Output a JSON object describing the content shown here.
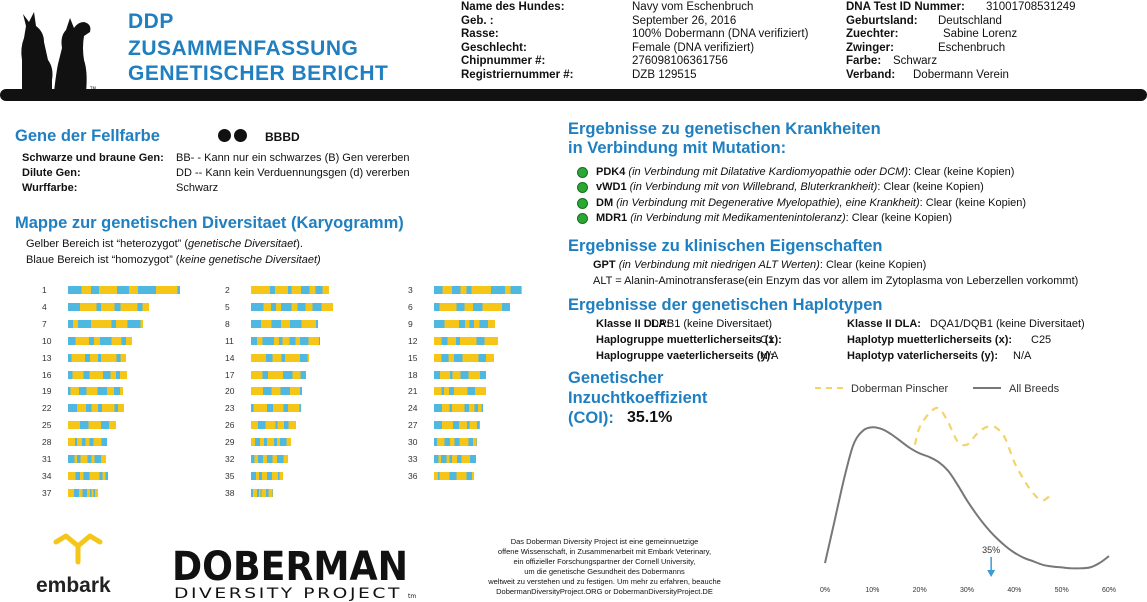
{
  "header": {
    "title_lines": [
      "DDP",
      "ZUSAMMENFASSUNG",
      "GENETISCHER BERICHT"
    ],
    "left_fields": [
      {
        "label": "Name des Hundes:",
        "value": "Navy vom Eschenbruch"
      },
      {
        "label": "Geb. :",
        "value": "September 26, 2016"
      },
      {
        "label": "Rasse:",
        "value": "100% Dobermann (DNA verifiziert)"
      },
      {
        "label": "Geschlecht:",
        "value": "Female (DNA verifiziert)"
      },
      {
        "label": "Chipnummer #:",
        "value": "276098106361756"
      },
      {
        "label": "Registriernummer #:",
        "value": "DZB 129515"
      }
    ],
    "right_fields": [
      {
        "label": "DNA Test ID Nummer:",
        "value": "31001708531249"
      },
      {
        "label": "Geburtsland:",
        "value": "Deutschland"
      },
      {
        "label": "Zuechter:",
        "value": "Sabine Lorenz"
      },
      {
        "label": "Zwinger:",
        "value": "Eschenbruch"
      },
      {
        "label": "Farbe:",
        "value": "Schwarz"
      },
      {
        "label": "Verband:",
        "value": "Dobermann Verein"
      }
    ]
  },
  "coat": {
    "heading": "Gene der Fellfarbe",
    "genotype": "BBBD",
    "rows": [
      {
        "label": "Schwarze und braune Gen:",
        "value": "BB- - Kann nur ein schwarzes (B) Gen vererben"
      },
      {
        "label": "Dilute Gen:",
        "value": "DD -- Kann kein Verduennungsgen (d) vererben"
      },
      {
        "label": "Wurffarbe:",
        "value": "Schwarz"
      }
    ]
  },
  "karyogram": {
    "heading": "Mappe zur genetischen Diversitaet (Karyogramm)",
    "line1_prefix": "Gelber Bereich ist “heterozygot” (",
    "line1_italic": "genetische Diversitaet",
    "line1_suffix": ").",
    "line2_prefix": "Blaue  Bereich ist “homozygot” (",
    "line2_italic": "keine genetische Diversitaet)",
    "colors": {
      "heterozygous": "#f5c518",
      "homozygous": "#4fb8e0"
    },
    "columns": [
      [
        "1",
        "4",
        "7",
        "10",
        "13",
        "16",
        "19",
        "22",
        "25",
        "28",
        "31",
        "34",
        "37"
      ],
      [
        "2",
        "5",
        "8",
        "11",
        "14",
        "17",
        "20",
        "23",
        "26",
        "29",
        "32",
        "35",
        "38"
      ],
      [
        "3",
        "6",
        "9",
        "12",
        "15",
        "18",
        "21",
        "24",
        "27",
        "30",
        "33",
        "36"
      ]
    ]
  },
  "disease": {
    "heading_line1": "Ergebnisse zu genetischen Krankheiten",
    "heading_line2": "in Verbindung mit Mutation:",
    "items": [
      {
        "gene": "PDK4",
        "desc": "(in Verbindung mit Dilatative Kardiomyopathie oder DCM)",
        "result": ": Clear (keine Kopien)"
      },
      {
        "gene": "vWD1",
        "desc": "(in Verbindung mit von Willebrand, Bluterkrankheit)",
        "result": ":  Clear (keine Kopien)"
      },
      {
        "gene": "DM",
        "desc": "(in Verbindung mit Degenerative Myelopathie), eine Krankheit)",
        "result": ":  Clear (keine Kopien)"
      },
      {
        "gene": "MDR1",
        "desc": "(in Verbindung mit Medikamentenintoleranz)",
        "result": ": Clear (keine Kopien)"
      }
    ]
  },
  "clinical": {
    "heading": "Ergebnisse zu klinischen Eigenschaften",
    "gpt_label": "GPT",
    "gpt_desc": "(in Verbindung mit niedrigen ALT Werten)",
    "gpt_result": ":  Clear (keine Kopien)",
    "alt_text": "ALT = Alanin-Aminotransferase(ein Enzym das vor allem im Zytoplasma von Leberzellen vorkommt)"
  },
  "haplotypes": {
    "heading": "Ergebnisse der genetischen Haplotypen",
    "left": [
      {
        "label": "Klasse II DLA:",
        "value": "DRB1  (keine Diversitaet)"
      },
      {
        "label": "Haplogruppe muetterlicherseits (x):",
        "value": "C1"
      },
      {
        "label": "Haplogruppe vaeterlicherseits (y):",
        "value": "N/A"
      }
    ],
    "right": [
      {
        "label": "Klasse II DLA:",
        "value": "DQA1/DQB1 (keine Diversitaet)"
      },
      {
        "label": "Haplotyp muetterlicherseits (x):",
        "value": "C25"
      },
      {
        "label": "Haplotyp vaterlicherseits (y):",
        "value": "N/A"
      }
    ]
  },
  "coi": {
    "heading_lines": [
      "Genetischer",
      "Inzuchtkoeffizient"
    ],
    "label": "(COI):",
    "value": "35.1%"
  },
  "chart_data": {
    "type": "line",
    "legend_placement": "top",
    "series": [
      {
        "name": "Doberman Pinscher",
        "color": "#f3d46a",
        "style": "dashed",
        "x": [
          19,
          20,
          22,
          24,
          26,
          28,
          30,
          32,
          34,
          36,
          38,
          40,
          42,
          44,
          46,
          48
        ],
        "y": [
          0.72,
          0.82,
          0.9,
          0.93,
          0.85,
          0.74,
          0.72,
          0.78,
          0.82,
          0.82,
          0.76,
          0.62,
          0.52,
          0.44,
          0.4,
          0.44
        ]
      },
      {
        "name": "All Breeds",
        "color": "#777777",
        "style": "solid",
        "x": [
          0,
          2,
          4,
          6,
          8,
          10,
          12,
          14,
          16,
          18,
          20,
          22,
          24,
          26,
          28,
          30,
          32,
          34,
          36,
          38,
          40,
          42,
          44,
          46,
          48,
          50,
          52,
          54,
          56,
          58,
          60
        ],
        "y": [
          0.04,
          0.28,
          0.52,
          0.72,
          0.8,
          0.82,
          0.81,
          0.78,
          0.74,
          0.7,
          0.67,
          0.65,
          0.62,
          0.57,
          0.49,
          0.4,
          0.32,
          0.25,
          0.19,
          0.14,
          0.1,
          0.07,
          0.05,
          0.03,
          0.02,
          0.015,
          0.01,
          0.01,
          0.015,
          0.04,
          0.08
        ]
      }
    ],
    "marker": {
      "x": 35.1,
      "label": "35%"
    },
    "xticks": [
      "0%",
      "10%",
      "20%",
      "30%",
      "40%",
      "50%",
      "60%"
    ],
    "xlim": [
      0,
      60
    ]
  },
  "footer": {
    "embark_label": "embark",
    "ddp_logo_text": "DOBERMAN",
    "ddp_sub_text": "DIVERSITY PROJECT",
    "tm": "tm",
    "paragraph": [
      "Das Doberman Diversity Project ist eine gemeinnuetzige",
      "offene Wissenschaft, in Zusammenarbeit mit Embark Veterinary,",
      "ein offizieller Forschungspartner der Cornell University,",
      "um die genetische Gesundheit des Dobermanns",
      "weltweit zu verstehen und zu festigen. Um mehr zu erfahren, beauche",
      "DobermanDiversityProject.ORG or DobermanDiversityProject.DE"
    ]
  }
}
